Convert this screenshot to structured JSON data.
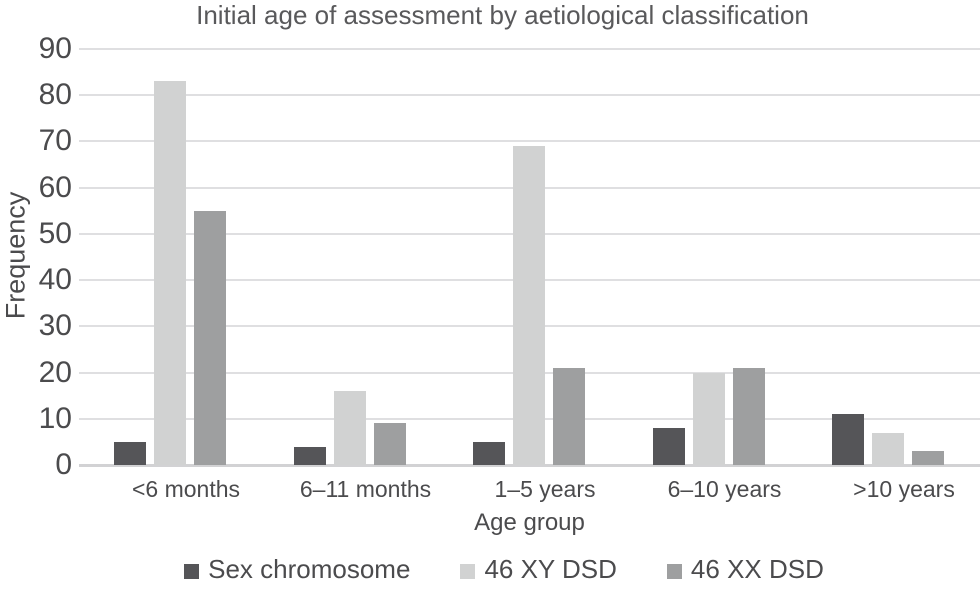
{
  "chart_data": {
    "type": "bar",
    "title": "Initial age of assessment by aetiological classification",
    "xlabel": "Age group",
    "ylabel": "Frequency",
    "categories": [
      "<6 months",
      "6–11 months",
      "1–5 years",
      "6–10 years",
      ">10 years"
    ],
    "series": [
      {
        "name": "Sex chromosome",
        "color": "#555558",
        "values": [
          5,
          4,
          5,
          8,
          11
        ]
      },
      {
        "name": "46 XY DSD",
        "color": "#d1d2d2",
        "values": [
          83,
          16,
          69,
          20,
          7
        ]
      },
      {
        "name": "46 XX DSD",
        "color": "#9e9fa0",
        "values": [
          55,
          9,
          21,
          21,
          3
        ]
      }
    ],
    "ylim": [
      0,
      90
    ],
    "yticks": [
      0,
      10,
      20,
      30,
      40,
      50,
      60,
      70,
      80,
      90
    ],
    "grid": "horizontal",
    "legend_position": "bottom",
    "colors": {
      "gridline": "#dfdfe1",
      "baseline": "#d2d2d4",
      "tick_text": "#4b4b4d",
      "title_text": "#59595b",
      "background": "#ffffff"
    }
  }
}
